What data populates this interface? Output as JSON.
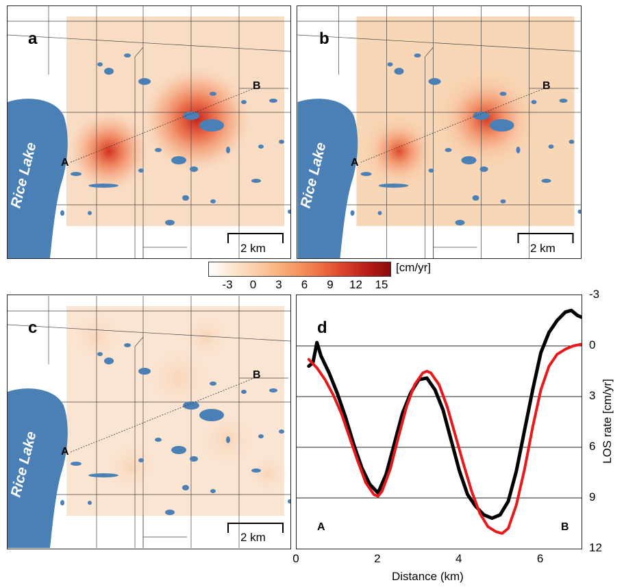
{
  "panels": {
    "a": {
      "label": "a",
      "point_a": "A",
      "point_b": "B",
      "lake": "Rice Lake",
      "scale": "2 km"
    },
    "b": {
      "label": "b",
      "point_a": "A",
      "point_b": "B",
      "lake": "Rice Lake",
      "scale": "2 km"
    },
    "c": {
      "label": "c",
      "point_a": "A",
      "point_b": "B",
      "lake": "Rice Lake",
      "scale": "2 km"
    },
    "d": {
      "label": "d",
      "point_a": "A",
      "point_b": "B"
    }
  },
  "colorbar": {
    "unit": "[cm/yr]",
    "ticks": [
      "-3",
      "0",
      "3",
      "6",
      "9",
      "12",
      "15"
    ],
    "range": [
      -3,
      15
    ],
    "colors": [
      "#ffffff",
      "#fde7d2",
      "#fcd0ab",
      "#f9b382",
      "#f5935d",
      "#ec6b40",
      "#d9402a",
      "#b81d18",
      "#8b0a0a"
    ]
  },
  "colors": {
    "water": "#4a80b5",
    "model_line": "#e8191c",
    "observed_line": "#000000",
    "road": "#444444"
  },
  "chart_data": {
    "type": "line",
    "xlabel": "Distance (km)",
    "ylabel": "LOS rate [cm/yr]",
    "xlim": [
      0,
      7
    ],
    "ylim": [
      12,
      -3
    ],
    "xticks": [
      "0",
      "2",
      "4",
      "6"
    ],
    "yticks": [
      "-3",
      "0",
      "3",
      "6",
      "9",
      "12"
    ],
    "grid_y": [
      0,
      3,
      6,
      9
    ],
    "series": [
      {
        "color": "#000000",
        "x": [
          0.3,
          0.4,
          0.5,
          0.6,
          0.8,
          1.0,
          1.2,
          1.4,
          1.6,
          1.8,
          2.0,
          2.2,
          2.4,
          2.6,
          2.8,
          3.0,
          3.2,
          3.4,
          3.6,
          3.8,
          4.0,
          4.2,
          4.4,
          4.6,
          4.8,
          5.0,
          5.2,
          5.4,
          5.6,
          5.8,
          6.0,
          6.2,
          6.4,
          6.6,
          6.75,
          6.9,
          7.0
        ],
        "y": [
          1.2,
          1.0,
          -0.2,
          0.6,
          1.6,
          2.8,
          4.2,
          5.8,
          7.2,
          8.2,
          8.7,
          7.6,
          5.8,
          4.0,
          2.8,
          2.0,
          1.9,
          2.6,
          3.8,
          5.6,
          7.4,
          8.8,
          9.5,
          10.0,
          10.2,
          10.0,
          9.2,
          7.4,
          5.0,
          2.6,
          0.4,
          -0.8,
          -1.5,
          -2.0,
          -2.1,
          -1.8,
          -1.7
        ]
      },
      {
        "color": "#e8191c",
        "x": [
          0.3,
          0.5,
          0.7,
          0.9,
          1.1,
          1.3,
          1.5,
          1.7,
          1.9,
          2.0,
          2.1,
          2.3,
          2.5,
          2.7,
          2.9,
          3.1,
          3.2,
          3.3,
          3.5,
          3.7,
          3.9,
          4.1,
          4.3,
          4.5,
          4.7,
          4.9,
          5.05,
          5.2,
          5.4,
          5.6,
          5.8,
          6.0,
          6.2,
          6.4,
          6.6,
          6.8,
          7.0
        ],
        "y": [
          0.8,
          1.3,
          2.0,
          2.9,
          4.0,
          5.4,
          6.8,
          8.1,
          8.8,
          8.9,
          8.6,
          7.3,
          5.4,
          3.6,
          2.3,
          1.6,
          1.5,
          1.6,
          2.3,
          3.6,
          5.3,
          7.0,
          8.6,
          9.9,
          10.7,
          11.0,
          11.1,
          10.8,
          9.4,
          7.3,
          4.8,
          2.6,
          1.2,
          0.5,
          0.2,
          0.0,
          -0.1
        ]
      }
    ]
  }
}
